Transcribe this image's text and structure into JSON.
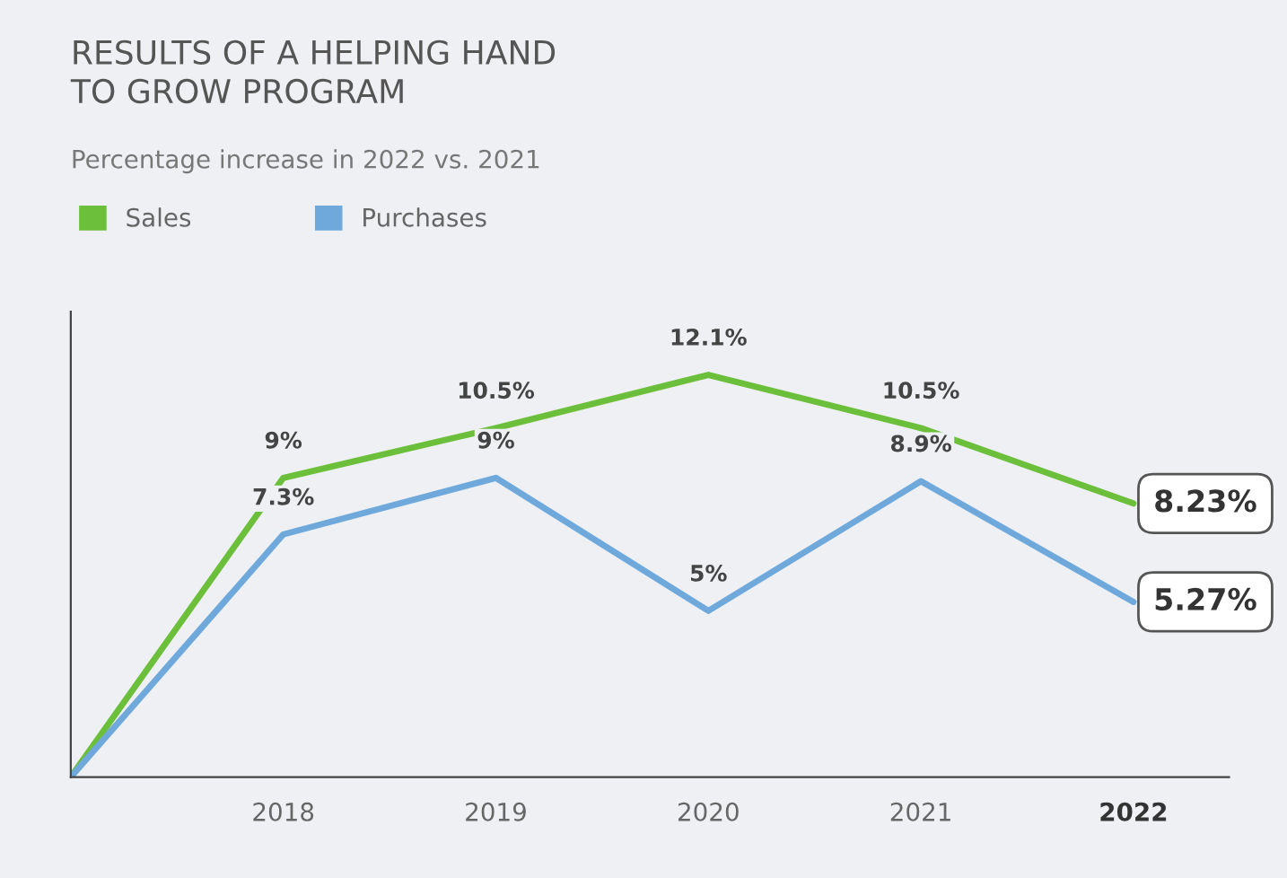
{
  "chart_data": {
    "type": "line",
    "title": "RESULTS OF A HELPING HAND\nTO GROW PROGRAM",
    "subtitle": "Percentage increase in 2022 vs. 2021",
    "categories": [
      null,
      "2018",
      "2019",
      "2020",
      "2021",
      "2022"
    ],
    "series": [
      {
        "name": "Sales",
        "color": "#6cbf3a",
        "values": [
          0,
          9,
          10.5,
          12.1,
          10.5,
          8.23
        ],
        "value_labels": [
          null,
          "9%",
          "10.5%",
          "12.1%",
          "10.5%",
          "8.23%"
        ]
      },
      {
        "name": "Purchases",
        "color": "#6fa9dc",
        "values": [
          0,
          7.3,
          9,
          5,
          8.9,
          5.27
        ],
        "value_labels": [
          null,
          "7.3%",
          "9%",
          "5%",
          "8.9%",
          "5.27%"
        ]
      }
    ],
    "ylim": [
      0,
      14
    ],
    "tick_labels": "x",
    "legend": "top left",
    "grid": false,
    "marker": "none",
    "line_style": "solid"
  }
}
